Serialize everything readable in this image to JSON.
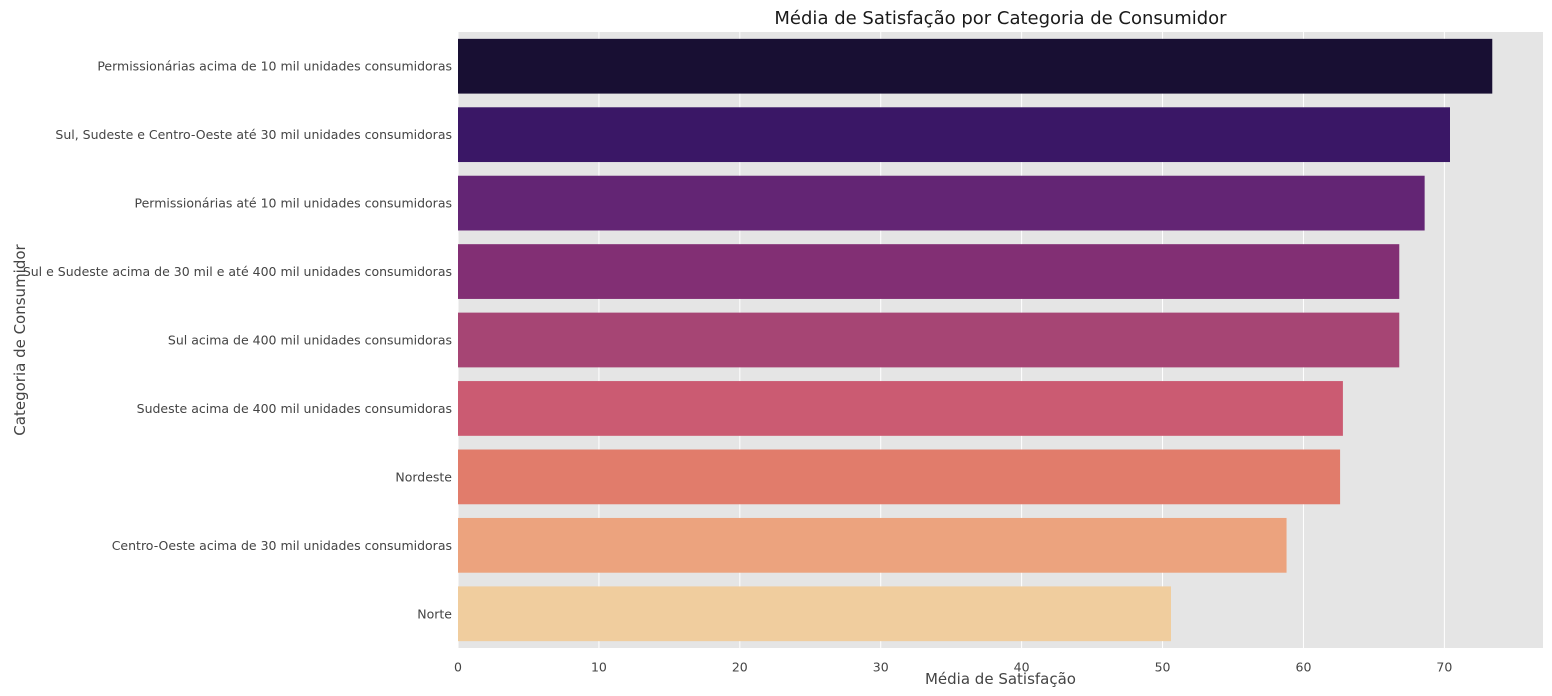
{
  "chart_data": {
    "type": "bar",
    "orientation": "horizontal",
    "title": "Média de Satisfação por Categoria de Consumidor",
    "xlabel": "Média de Satisfação",
    "ylabel": "Categoria de Consumidor",
    "categories": [
      "Permissionárias acima de 10 mil unidades consumidoras",
      "Sul, Sudeste e Centro-Oeste até 30 mil unidades consumidoras",
      "Permissionárias até 10 mil unidades consumidoras",
      "Sul e Sudeste acima de 30 mil e até 400 mil unidades consumidoras",
      "Sul acima de 400 mil unidades consumidoras",
      "Sudeste acima de 400 mil unidades consumidoras",
      "Nordeste",
      "Centro-Oeste acima de 30 mil unidades consumidoras",
      "Norte"
    ],
    "values": [
      73.4,
      70.4,
      68.6,
      66.8,
      66.8,
      62.8,
      62.6,
      58.8,
      50.6
    ],
    "colors": [
      "#180f33",
      "#3a1766",
      "#632574",
      "#822f74",
      "#a64574",
      "#cb5b72",
      "#e17c6b",
      "#eca37e",
      "#f0cd9e"
    ],
    "xlim": [
      0,
      77
    ],
    "xticks": [
      0,
      10,
      20,
      30,
      40,
      50,
      60,
      70
    ],
    "grid": true,
    "background": "#e5e5e5"
  }
}
